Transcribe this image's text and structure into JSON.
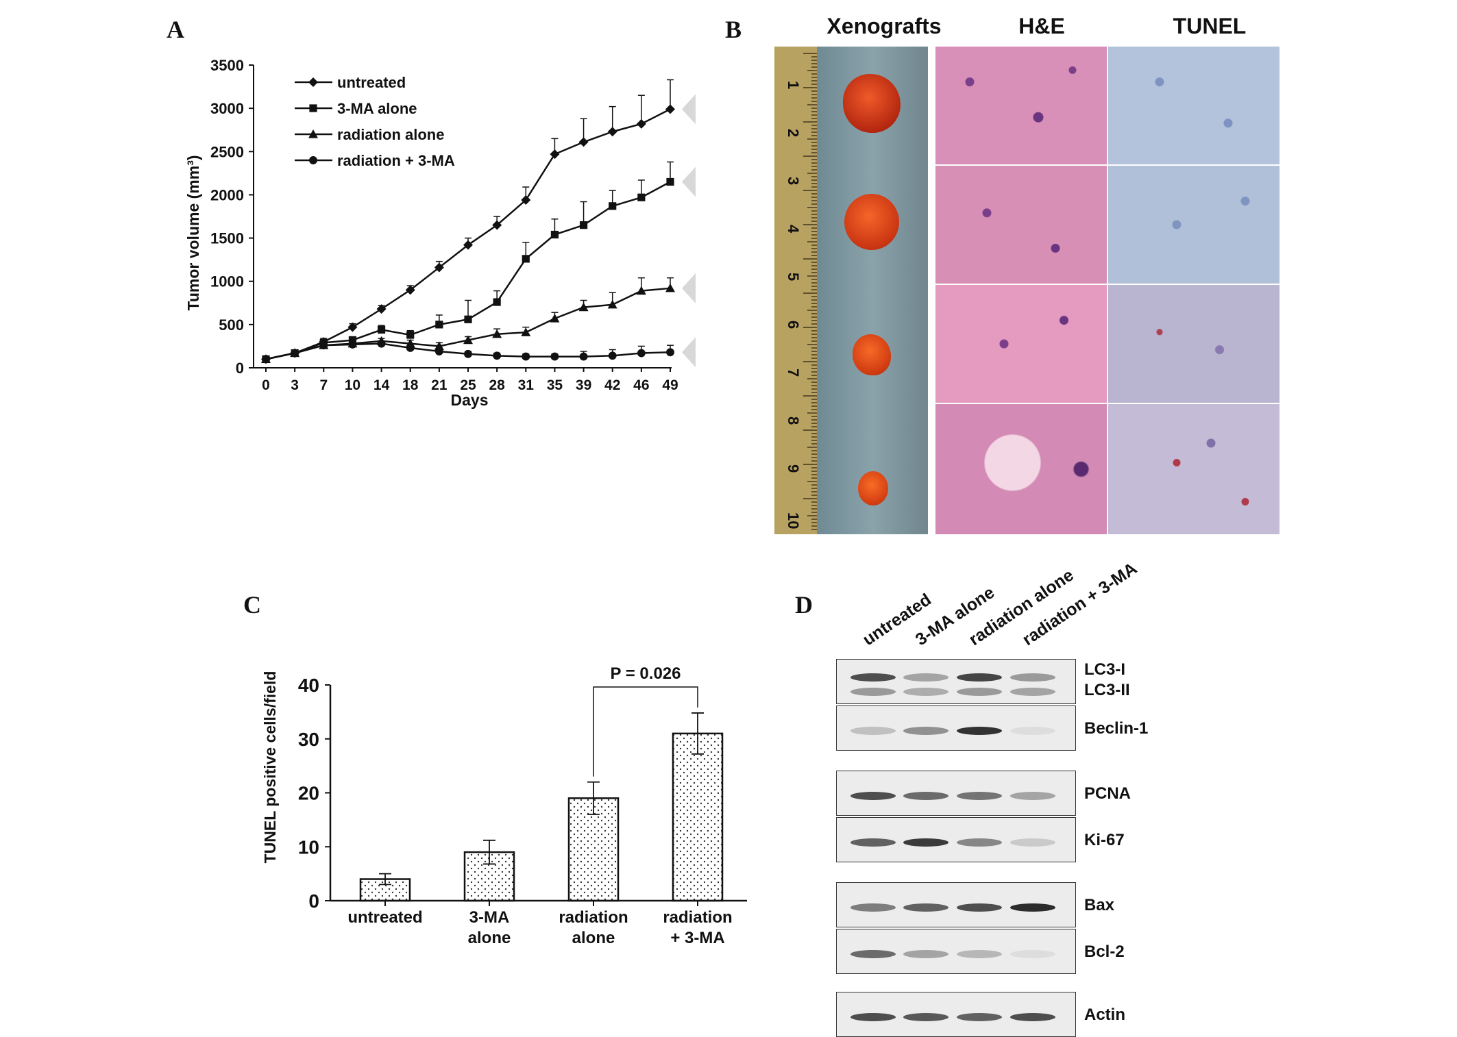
{
  "panel_labels": {
    "a": "A",
    "b": "B",
    "c": "C",
    "d": "D"
  },
  "chart_data": [
    {
      "type": "line",
      "panel": "A",
      "xlabel": "Days",
      "ylabel": "Tumor volume (mm³)",
      "categories": [
        "0",
        "3",
        "7",
        "10",
        "14",
        "18",
        "21",
        "25",
        "28",
        "31",
        "35",
        "39",
        "42",
        "46",
        "49"
      ],
      "ylim": [
        0,
        3500
      ],
      "yticks": [
        0,
        500,
        1000,
        1500,
        2000,
        2500,
        3000,
        3500
      ],
      "legend_position": "top-left",
      "series": [
        {
          "name": "untreated",
          "marker": "diamond",
          "values": [
            100,
            170,
            300,
            470,
            680,
            900,
            1160,
            1420,
            1650,
            1940,
            2470,
            2610,
            2730,
            2820,
            2990
          ],
          "errors": [
            30,
            30,
            40,
            40,
            40,
            50,
            70,
            80,
            100,
            150,
            180,
            270,
            290,
            330,
            340
          ]
        },
        {
          "name": "3-MA alone",
          "marker": "square",
          "values": [
            100,
            170,
            290,
            320,
            440,
            380,
            500,
            560,
            760,
            1260,
            1540,
            1650,
            1870,
            1970,
            2150
          ],
          "errors": [
            20,
            30,
            30,
            40,
            50,
            50,
            110,
            220,
            130,
            190,
            180,
            270,
            180,
            200,
            230
          ]
        },
        {
          "name": "radiation alone",
          "marker": "triangle",
          "values": [
            100,
            170,
            260,
            280,
            310,
            280,
            250,
            320,
            390,
            410,
            570,
            700,
            730,
            890,
            920
          ],
          "errors": [
            20,
            20,
            30,
            30,
            30,
            40,
            40,
            40,
            60,
            60,
            70,
            80,
            140,
            150,
            120
          ]
        },
        {
          "name": "radiation + 3-MA",
          "marker": "circle",
          "values": [
            100,
            170,
            260,
            270,
            280,
            230,
            190,
            160,
            140,
            130,
            130,
            130,
            140,
            170,
            180
          ],
          "errors": [
            20,
            20,
            30,
            30,
            30,
            30,
            30,
            30,
            30,
            30,
            30,
            60,
            70,
            80,
            80
          ]
        }
      ]
    },
    {
      "type": "bar",
      "panel": "C",
      "ylabel": "TUNEL positive cells/field",
      "categories": [
        [
          "untreated"
        ],
        [
          "3-MA",
          "alone"
        ],
        [
          "radiation",
          "alone"
        ],
        [
          "radiation",
          "+ 3-MA"
        ]
      ],
      "values": [
        4,
        9,
        19,
        31
      ],
      "errors": [
        1,
        2.2,
        3,
        3.8
      ],
      "ylim": [
        0,
        40
      ],
      "yticks": [
        0,
        10,
        20,
        30,
        40
      ],
      "annotation": "P = 0.026"
    }
  ],
  "panel_b": {
    "columns": [
      "Xenografts",
      "H&E",
      "TUNEL"
    ],
    "ruler_numbers": [
      "1",
      "2",
      "3",
      "4",
      "5",
      "6",
      "7",
      "8",
      "9",
      "10"
    ]
  },
  "panel_d": {
    "lanes": [
      "untreated",
      "3-MA alone",
      "radiation alone",
      "radiation + 3-MA"
    ],
    "blots": [
      {
        "labels": [
          "LC3-I",
          "LC3-II"
        ],
        "intensity": [
          0.8,
          0.35,
          0.85,
          0.4
        ],
        "intensity2": [
          0.4,
          0.3,
          0.4,
          0.35
        ]
      },
      {
        "labels": [
          "Beclin-1"
        ],
        "intensity": [
          0.2,
          0.45,
          0.95,
          0.05
        ]
      },
      {
        "labels": [
          "PCNA"
        ],
        "intensity": [
          0.8,
          0.65,
          0.6,
          0.35
        ]
      },
      {
        "labels": [
          "Ki-67"
        ],
        "intensity": [
          0.7,
          0.9,
          0.5,
          0.15
        ]
      },
      {
        "labels": [
          "Bax"
        ],
        "intensity": [
          0.55,
          0.7,
          0.8,
          0.98
        ]
      },
      {
        "labels": [
          "Bcl-2"
        ],
        "intensity": [
          0.65,
          0.35,
          0.25,
          0.05
        ]
      },
      {
        "labels": [
          "Actin"
        ],
        "intensity": [
          0.8,
          0.75,
          0.7,
          0.8
        ]
      }
    ]
  }
}
